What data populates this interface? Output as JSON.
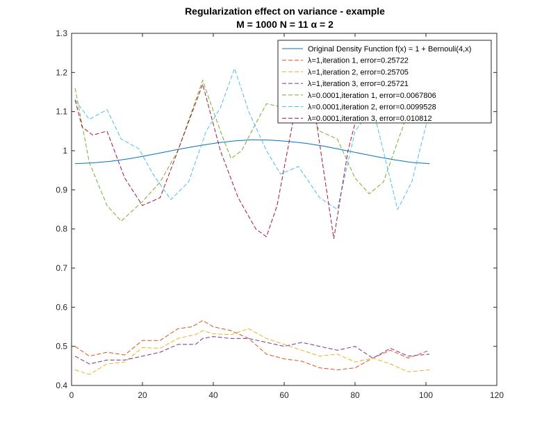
{
  "chart_data": {
    "type": "line",
    "title": "Regularization effect on variance - example",
    "subtitle": "M = 1000 N = 11 α = 2",
    "xlabel": "",
    "ylabel": "",
    "xlim": [
      0,
      120
    ],
    "ylim": [
      0.4,
      1.3
    ],
    "xticks": [
      "0",
      "20",
      "40",
      "60",
      "80",
      "100",
      "120"
    ],
    "yticks": [
      "0.4",
      "0.5",
      "0.6",
      "0.7",
      "0.8",
      "0.9",
      "1",
      "1.1",
      "1.2",
      "1.3"
    ],
    "grid": false,
    "legend_position": "top-right",
    "series": [
      {
        "name": "Original Density Function f(x) = 1 + Bernouli(4,x)",
        "style": "solid",
        "color": "#0072BD",
        "x": [
          1,
          6,
          11,
          16,
          21,
          26,
          31,
          36,
          41,
          46,
          51,
          56,
          61,
          66,
          71,
          76,
          81,
          86,
          91,
          96,
          101
        ],
        "y": [
          0.967,
          0.969,
          0.973,
          0.979,
          0.987,
          0.996,
          1.005,
          1.013,
          1.02,
          1.025,
          1.028,
          1.027,
          1.024,
          1.019,
          1.012,
          1.003,
          0.994,
          0.985,
          0.977,
          0.97,
          0.967
        ]
      },
      {
        "name": "λ=1,iteration 1, error=0.25722",
        "style": "dashed",
        "color": "#D95319",
        "x": [
          1,
          5,
          10,
          15,
          20,
          25,
          30,
          34,
          37,
          40,
          45,
          50,
          55,
          60,
          65,
          70,
          75,
          80,
          85,
          90,
          95,
          101
        ],
        "y": [
          0.5,
          0.475,
          0.485,
          0.478,
          0.515,
          0.515,
          0.545,
          0.55,
          0.566,
          0.55,
          0.54,
          0.52,
          0.48,
          0.468,
          0.462,
          0.445,
          0.44,
          0.445,
          0.47,
          0.49,
          0.47,
          0.49
        ]
      },
      {
        "name": "λ=1,iteration 2, error=0.25705",
        "style": "dashed",
        "color": "#EDB120",
        "x": [
          1,
          5,
          10,
          15,
          20,
          25,
          30,
          35,
          37,
          40,
          45,
          50,
          55,
          60,
          65,
          70,
          75,
          80,
          85,
          90,
          95,
          101
        ],
        "y": [
          0.44,
          0.428,
          0.455,
          0.46,
          0.497,
          0.495,
          0.52,
          0.53,
          0.54,
          0.532,
          0.53,
          0.545,
          0.52,
          0.505,
          0.49,
          0.475,
          0.48,
          0.46,
          0.47,
          0.455,
          0.435,
          0.44
        ]
      },
      {
        "name": "λ=1,iteration 3, error=0.25721",
        "style": "dashed",
        "color": "#7E2F8E",
        "x": [
          1,
          5,
          10,
          15,
          20,
          25,
          30,
          35,
          37,
          40,
          45,
          50,
          55,
          60,
          65,
          70,
          75,
          80,
          85,
          90,
          95,
          101
        ],
        "y": [
          0.475,
          0.455,
          0.465,
          0.465,
          0.475,
          0.485,
          0.505,
          0.505,
          0.52,
          0.525,
          0.52,
          0.52,
          0.51,
          0.5,
          0.51,
          0.5,
          0.49,
          0.5,
          0.47,
          0.495,
          0.475,
          0.48
        ]
      },
      {
        "name": "λ=0.0001,iteration 1, error=0.0067806",
        "style": "dashed",
        "color": "#77AC30",
        "x": [
          1,
          5,
          10,
          14,
          20,
          25,
          30,
          37,
          42,
          45,
          48,
          52,
          55,
          60,
          65,
          70,
          75,
          80,
          84,
          88,
          95,
          101
        ],
        "y": [
          1.16,
          0.97,
          0.86,
          0.82,
          0.87,
          0.92,
          1.0,
          1.18,
          1.05,
          0.98,
          1.0,
          1.07,
          1.12,
          1.11,
          1.14,
          1.05,
          1.03,
          0.93,
          0.89,
          0.92,
          1.1,
          1.16
        ]
      },
      {
        "name": "λ=0.0001,iteration 2, error=0.0099528",
        "style": "dashed",
        "color": "#4DBEEE",
        "x": [
          1,
          5,
          10,
          14,
          19,
          23,
          28,
          33,
          38,
          42,
          46,
          50,
          55,
          59,
          64,
          70,
          75,
          80,
          85,
          92,
          96,
          101
        ],
        "y": [
          1.13,
          1.08,
          1.105,
          1.03,
          1.005,
          0.94,
          0.875,
          0.92,
          1.05,
          1.11,
          1.21,
          1.1,
          1.0,
          0.94,
          0.96,
          0.88,
          0.85,
          1.05,
          1.11,
          0.85,
          0.92,
          1.1
        ]
      },
      {
        "name": "λ=0.0001,iteration 3, error=0.010812",
        "style": "dashed",
        "color": "#A2142F",
        "x": [
          1,
          3,
          6,
          10,
          15,
          20,
          25,
          30,
          37,
          42,
          47,
          52,
          55,
          58,
          63,
          68,
          74,
          78,
          82,
          86
        ],
        "y": [
          1.13,
          1.06,
          1.04,
          1.05,
          0.93,
          0.86,
          0.88,
          1.0,
          1.17,
          1.0,
          0.88,
          0.8,
          0.78,
          0.86,
          1.1,
          1.14,
          0.775,
          1.0,
          1.14,
          1.16
        ]
      }
    ]
  }
}
